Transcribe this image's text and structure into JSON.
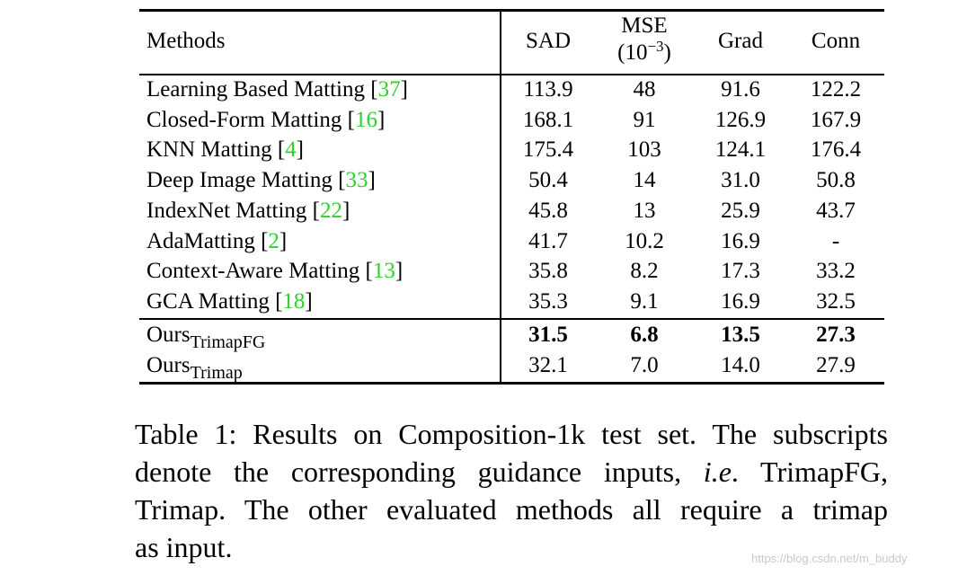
{
  "table": {
    "headers": {
      "methods": "Methods",
      "sad": "SAD",
      "mse": "MSE",
      "mse_unit_open": "(10",
      "mse_unit_exp": "−3",
      "mse_unit_close": ")",
      "grad": "Grad",
      "conn": "Conn"
    },
    "rows": [
      {
        "name": "Learning Based Matting [",
        "cite": "37",
        "close": "]",
        "sad": "113.9",
        "mse": "48",
        "grad": "91.6",
        "conn": "122.2"
      },
      {
        "name": "Closed-Form Matting [",
        "cite": "16",
        "close": "]",
        "sad": "168.1",
        "mse": "91",
        "grad": "126.9",
        "conn": "167.9"
      },
      {
        "name": "KNN Matting [",
        "cite": "4",
        "close": "]",
        "sad": "175.4",
        "mse": "103",
        "grad": "124.1",
        "conn": "176.4"
      },
      {
        "name": "Deep Image Matting [",
        "cite": "33",
        "close": "]",
        "sad": "50.4",
        "mse": "14",
        "grad": "31.0",
        "conn": "50.8"
      },
      {
        "name": "IndexNet Matting [",
        "cite": "22",
        "close": "]",
        "sad": "45.8",
        "mse": "13",
        "grad": "25.9",
        "conn": "43.7"
      },
      {
        "name": "AdaMatting [",
        "cite": "2",
        "close": "]",
        "sad": "41.7",
        "mse": "10.2",
        "grad": "16.9",
        "conn": "-"
      },
      {
        "name": "Context-Aware Matting [",
        "cite": "13",
        "close": "]",
        "sad": "35.8",
        "mse": "8.2",
        "grad": "17.3",
        "conn": "33.2"
      },
      {
        "name": "GCA Matting [",
        "cite": "18",
        "close": "]",
        "sad": "35.3",
        "mse": "9.1",
        "grad": "16.9",
        "conn": "32.5"
      }
    ],
    "ours": [
      {
        "base": "Ours",
        "sub": "TrimapFG",
        "sad": "31.5",
        "mse": "6.8",
        "grad": "13.5",
        "conn": "27.3"
      },
      {
        "base": "Ours",
        "sub": "Trimap",
        "sad": "32.1",
        "mse": "7.0",
        "grad": "14.0",
        "conn": "27.9"
      }
    ]
  },
  "caption": {
    "line1": "Table 1: Results on Composition-1k test set. The subscripts",
    "line2_a": "denote the corresponding guidance inputs, ",
    "line2_ie": "i.e",
    "line2_b": ". TrimapFG,",
    "line3": "Trimap.  The other evaluated methods all require a trimap",
    "line4": "as input."
  },
  "watermark": "https://blog.csdn.net/m_buddy"
}
